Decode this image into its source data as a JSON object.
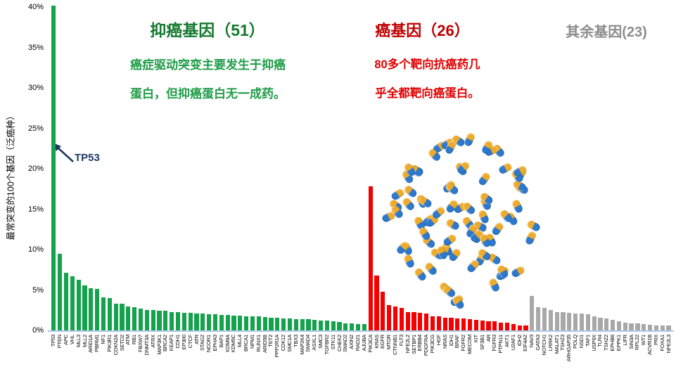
{
  "sections": {
    "suppressor": {
      "title": "抑癌基因（51）",
      "body_line1": "癌症驱动突变主要发生于抑癌",
      "body_line2": "蛋白，但抑癌蛋白无一成药。",
      "title_color": "#15792f",
      "body_color": "#1f9c47"
    },
    "oncogene": {
      "title": "癌基因（26）",
      "body_line1": "80多个靶向抗癌药几",
      "body_line2": "乎全都靶向癌蛋白。",
      "title_color": "#bf0000",
      "body_color": "#e00000"
    },
    "other": {
      "title": "其余基因(23)",
      "title_color": "#8c8c8c"
    }
  },
  "annotation": {
    "tp53_label": "TP53",
    "color": "#1f3864"
  },
  "y_axis": {
    "label": "最常突变的100个基因（泛癌种）",
    "ticks": [
      "0%",
      "5%",
      "10%",
      "15%",
      "20%",
      "25%",
      "30%",
      "35%",
      "40%"
    ]
  },
  "pills": {
    "count": 82,
    "top_color": "#edab2d",
    "bottom_color": "#2e79cc"
  },
  "chart_data": {
    "type": "bar",
    "title": "",
    "xlabel": "",
    "ylabel": "最常突变的100个基因（泛癌种）",
    "ylim": [
      0,
      40
    ],
    "y_tick_step": 5,
    "grid": false,
    "legend": false,
    "series": [
      {
        "name": "抑癌基因",
        "count": 51,
        "color": "#14a24c",
        "genes": [
          "TP53",
          "PTEN",
          "APC",
          "VHL",
          "MLL3",
          "MLL2",
          "ARID1A",
          "PBRM1",
          "NF1",
          "PIK3R1",
          "CDKN2A",
          "SETD2",
          "ATM",
          "RB1",
          "FBXW7",
          "DNMT3A",
          "ATRX",
          "MAP3K1",
          "BRCA2",
          "KEAP1",
          "CDH1",
          "EP300",
          "CTCF",
          "ATR",
          "STAG2",
          "NCOR1",
          "EPHA3",
          "BAP1",
          "KDM6A",
          "KDM5C",
          "MLL4",
          "BRCA1",
          "NPM1",
          "RUNX1",
          "ARID5B",
          "TET2",
          "PPP2R1A",
          "CDK12",
          "SMC1A",
          "TBX3",
          "MAP2K4",
          "SMAD4",
          "ASXL1",
          "SMC3",
          "TGFBR2",
          "STK11",
          "CHEK2",
          "SMAD2",
          "AXIN2",
          "RAD21",
          "AJUBA"
        ],
        "values": [
          40.2,
          9.5,
          7.1,
          6.7,
          6.3,
          5.6,
          5.2,
          5.1,
          4.1,
          4.0,
          3.3,
          3.3,
          3.0,
          2.9,
          2.7,
          2.5,
          2.5,
          2.4,
          2.4,
          2.3,
          2.3,
          2.2,
          2.2,
          2.1,
          2.1,
          2.0,
          2.0,
          1.9,
          1.9,
          1.8,
          1.8,
          1.75,
          1.7,
          1.7,
          1.65,
          1.6,
          1.55,
          1.5,
          1.45,
          1.4,
          1.35,
          1.35,
          1.3,
          1.25,
          1.2,
          1.1,
          1.05,
          0.9,
          0.85,
          0.8,
          0.8
        ]
      },
      {
        "name": "癌基因",
        "count": 26,
        "color": "#f40000",
        "genes": [
          "PIK3CA",
          "KRAS",
          "EGFR",
          "MTOR",
          "CTNNB1",
          "FLT3",
          "NFE2L2",
          "SETBP1",
          "ERBB4",
          "PDGFRA",
          "PIK3CG",
          "HGF",
          "NRAS",
          "IDH1",
          "BRAF",
          "FGFR2",
          "MECOM",
          "KIT",
          "SF3B1",
          "AR",
          "FGFR3",
          "PTPN11",
          "AKT1",
          "U2AF1",
          "IDH2",
          "EIF4A2"
        ],
        "values": [
          17.8,
          6.8,
          4.8,
          3.1,
          3.0,
          2.8,
          2.3,
          2.25,
          2.2,
          2.05,
          1.75,
          1.7,
          1.6,
          1.55,
          1.5,
          1.45,
          1.4,
          1.3,
          1.25,
          1.15,
          1.1,
          1.0,
          0.95,
          0.75,
          0.65,
          0.6
        ]
      },
      {
        "name": "其余基因",
        "count": 23,
        "color": "#a8a8a8",
        "genes": [
          "NAV3",
          "GATA3",
          "NOTCH1",
          "LRRK2",
          "MALAT1",
          "TSHZ3",
          "ARHGAP35",
          "POLQ",
          "NSD1",
          "TAF1",
          "USP9X",
          "TLR4",
          "TSHZ2",
          "EPHB6",
          "EPPK1",
          "LIFR",
          "SIN3A",
          "RPL22",
          "WT1",
          "ACVR1B",
          "PRX",
          "FOXA1",
          "NFE2L3"
        ],
        "values": [
          4.3,
          2.9,
          2.8,
          2.5,
          2.3,
          2.25,
          2.2,
          2.1,
          2.1,
          2.0,
          1.75,
          1.55,
          1.45,
          1.3,
          1.1,
          0.95,
          0.9,
          0.85,
          0.8,
          0.7,
          0.65,
          0.6,
          0.6
        ]
      }
    ]
  }
}
